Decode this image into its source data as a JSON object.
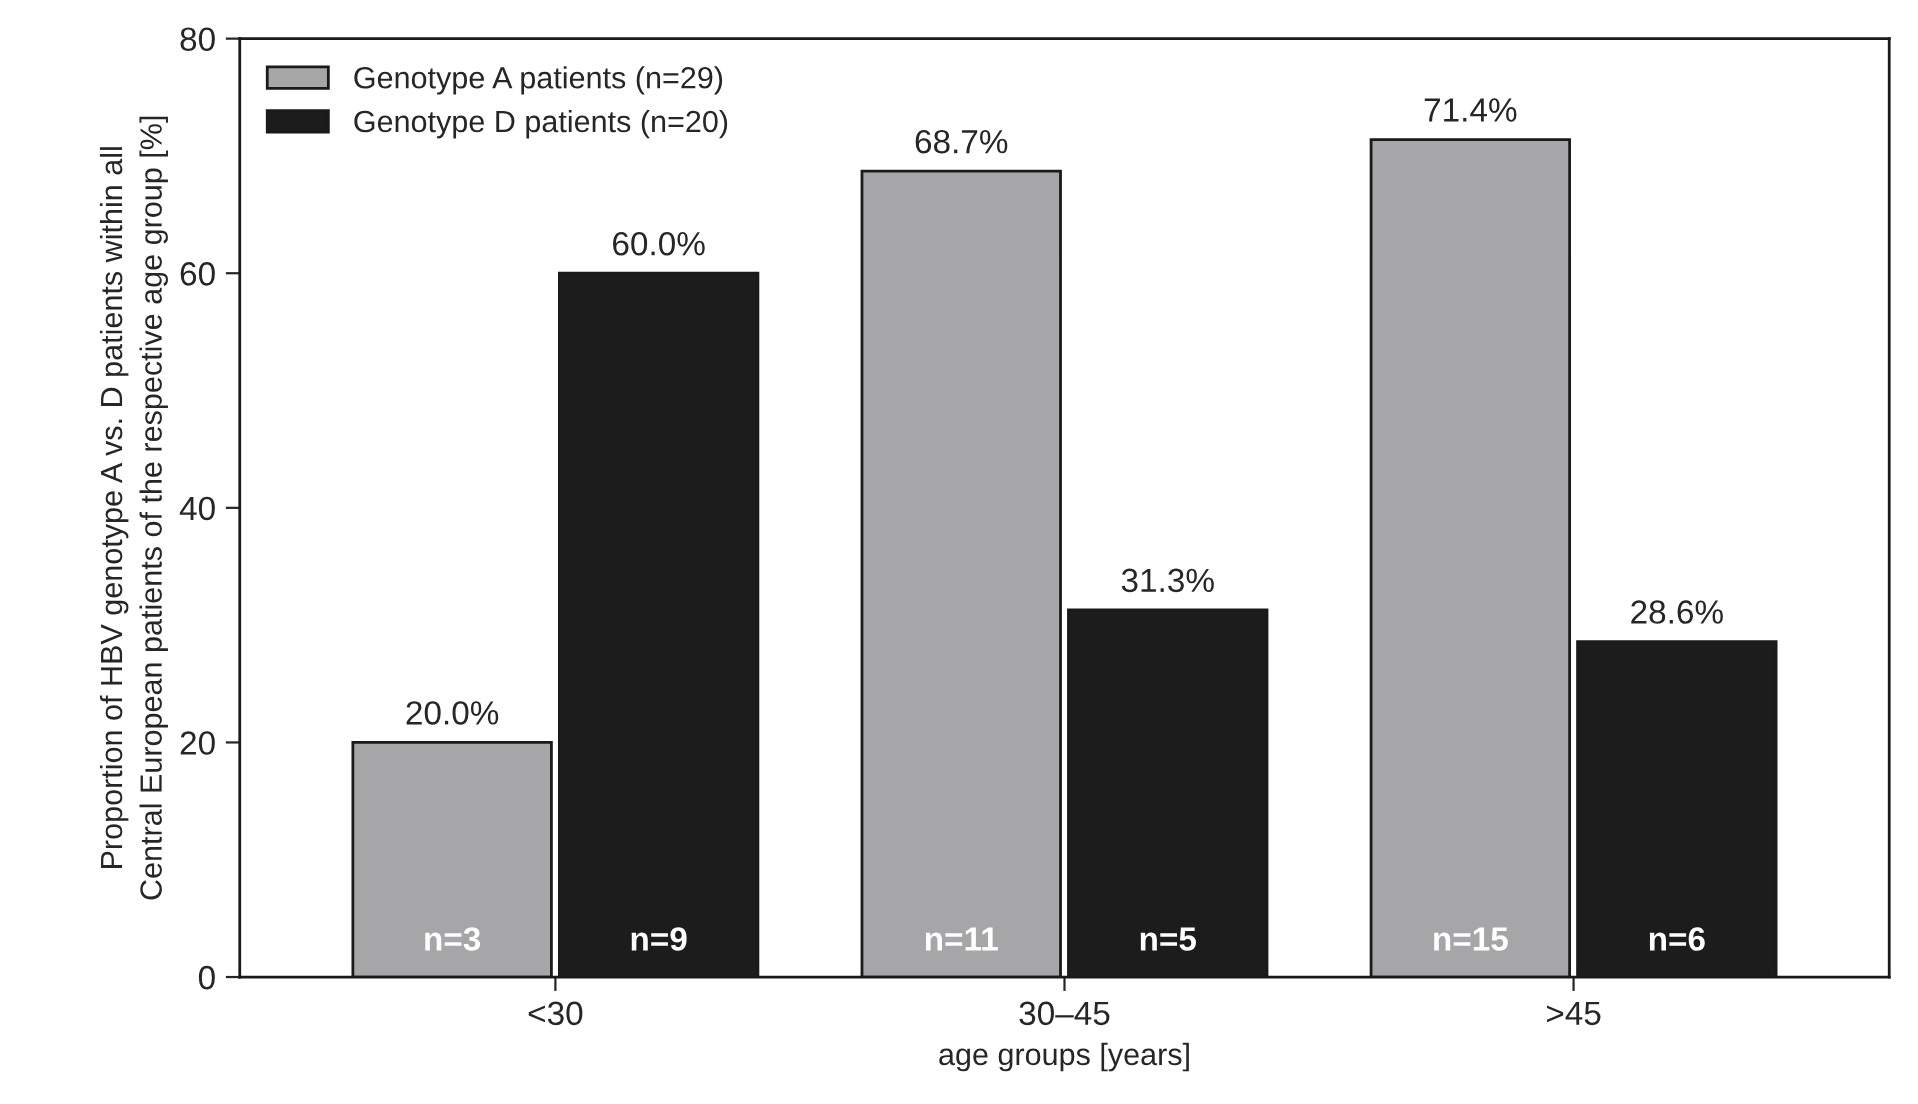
{
  "chart_data": {
    "type": "bar",
    "categories": [
      "<30",
      "30–45",
      ">45"
    ],
    "series": [
      {
        "name": "Genotype A patients (n=29)",
        "color": "#a6a6a8",
        "values": [
          20.0,
          68.7,
          71.4
        ],
        "value_labels": [
          "20.0%",
          "68.7%",
          "71.4%"
        ]
      },
      {
        "name": "Genotype D patients (n=20)",
        "color": "#1c1c1c",
        "values": [
          60.0,
          31.3,
          28.6
        ],
        "value_labels": [
          "60.0%",
          "31.3%",
          "28.6%"
        ]
      }
    ],
    "annotations": [
      {
        "text": "n=3",
        "x": "<30",
        "y": 3
      },
      {
        "text": "n=9",
        "x": "<30",
        "y": 3
      },
      {
        "text": "n=11",
        "x": "30–45",
        "y": 3
      },
      {
        "text": "n=5",
        "x": "30–45",
        "y": 3
      },
      {
        "text": "n=15",
        "x": ">45",
        "y": 3
      },
      {
        "text": "n=6",
        "x": ">45",
        "y": 3
      }
    ],
    "xlabel": "age groups [years]",
    "ylabel": "Proportion of HBV genotype A vs. D patients within all\nCentral European patients of the respective age group [%]",
    "ylim": [
      0,
      80
    ],
    "yticks": [
      0,
      20,
      40,
      60,
      80
    ],
    "grid": false,
    "legend": "top left"
  }
}
